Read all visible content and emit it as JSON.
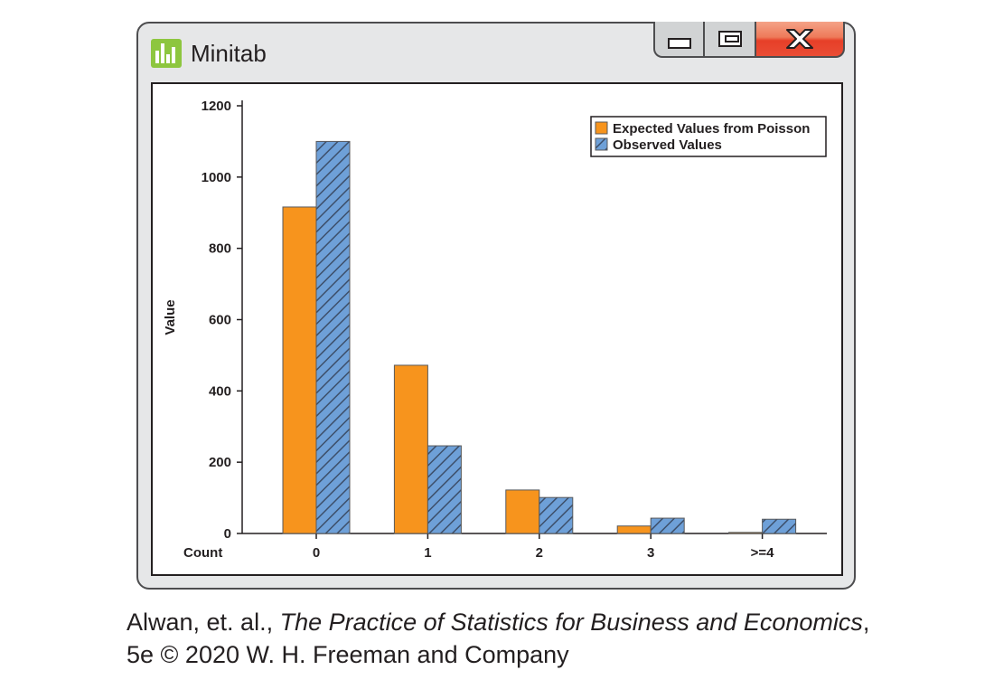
{
  "window": {
    "title": "Minitab",
    "icon": "minitab-bar-chart-icon",
    "controls": {
      "minimize": "minimize-icon",
      "maximize": "restore-icon",
      "close": "close-icon"
    },
    "close_glyph": "X",
    "colors": {
      "frame": "#e6e7e8",
      "close_button": "#e63f28",
      "app_icon": "#8dc63f"
    }
  },
  "chart_data": {
    "type": "bar",
    "categories": [
      "0",
      "1",
      "2",
      "3",
      ">=4"
    ],
    "category_axis_label": "Count",
    "series": [
      {
        "name": "Expected Values from Poisson",
        "values": [
          916,
          472,
          122,
          21,
          3
        ],
        "color": "#f7941d",
        "pattern": "solid"
      },
      {
        "name": "Observed Values",
        "values": [
          1100,
          246,
          101,
          43,
          40
        ],
        "color": "#6ea0d8",
        "pattern": "hatched"
      }
    ],
    "ylabel": "Value",
    "ylim": [
      0,
      1200
    ],
    "yticks": [
      0,
      200,
      400,
      600,
      800,
      1000,
      1200
    ],
    "legend_position": "top-right",
    "grid": false
  },
  "caption": {
    "authors": "Alwan, et. al., ",
    "book_title": "The Practice of Statistics for Business and Economics",
    "comma": ",",
    "edition_line": "5e © 2020 W. H. Freeman and Company"
  }
}
